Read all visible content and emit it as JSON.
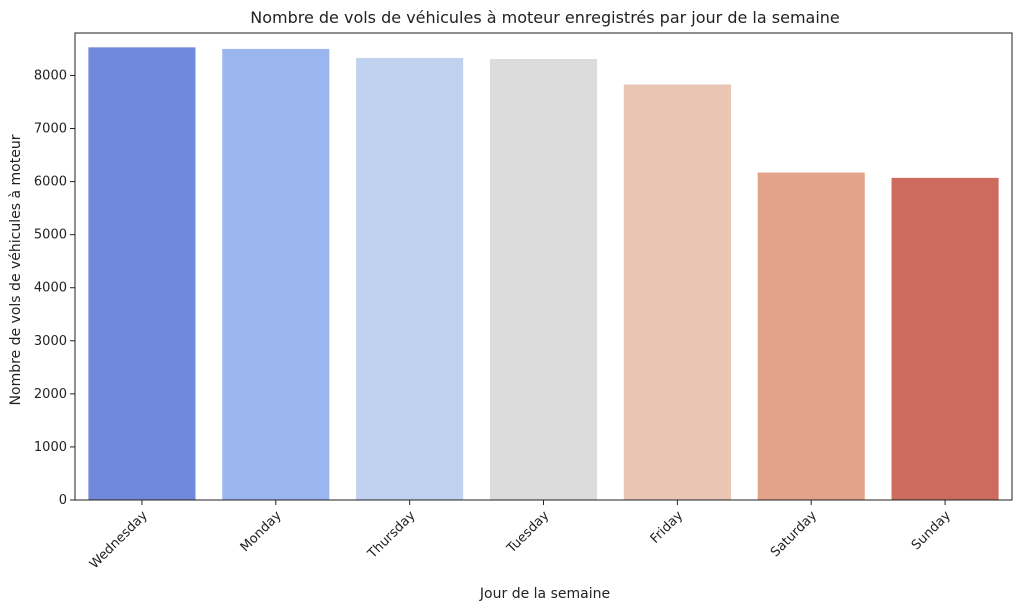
{
  "chart_data": {
    "type": "bar",
    "title": "Nombre de vols de véhicules à moteur enregistrés par jour de la semaine",
    "xlabel": "Jour de la semaine",
    "ylabel": "Nombre de vols de véhicules à moteur",
    "categories": [
      "Wednesday",
      "Monday",
      "Thursday",
      "Tuesday",
      "Friday",
      "Saturday",
      "Sunday"
    ],
    "values": [
      8530,
      8500,
      8330,
      8310,
      7830,
      6170,
      6070
    ],
    "colors": [
      "#7089db",
      "#9bb5ef",
      "#c1d2f0",
      "#dcdcdc",
      "#eac5b3",
      "#e3a28a",
      "#cd6b5f"
    ],
    "ylim": [
      0,
      8800
    ],
    "yticks": [
      0,
      1000,
      2000,
      3000,
      4000,
      5000,
      6000,
      7000,
      8000
    ],
    "ytick_labels": [
      "0",
      "1000",
      "2000",
      "3000",
      "4000",
      "5000",
      "6000",
      "7000",
      "8000"
    ],
    "grid": false,
    "legend": "none"
  }
}
